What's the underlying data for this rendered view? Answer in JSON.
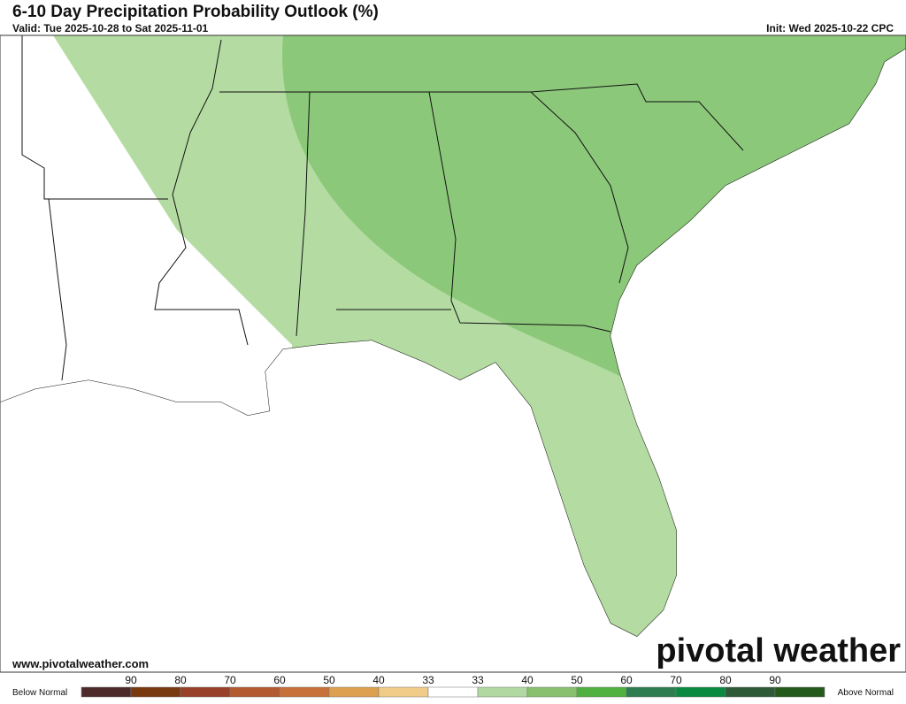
{
  "header": {
    "title": "6-10 Day Precipitation Probability Outlook (%)",
    "valid": "Valid: Tue 2025-10-28 to Sat 2025-11-01",
    "init": "Init: Wed 2025-10-22 CPC"
  },
  "footer": {
    "website": "www.pivotalweather.com",
    "logo": "pivotal weather"
  },
  "legend": {
    "below_label": "Below Normal",
    "above_label": "Above Normal",
    "ticks": [
      "90",
      "80",
      "70",
      "60",
      "50",
      "40",
      "33",
      "33",
      "40",
      "50",
      "60",
      "70",
      "80",
      "90"
    ],
    "colors": [
      "#4d2b2b",
      "#7a3a10",
      "#99402a",
      "#b45a30",
      "#c8703a",
      "#dda050",
      "#f0cc88",
      "#ffffff",
      "#b0d8a0",
      "#88c070",
      "#50b040",
      "#2e7d50",
      "#0a8a40",
      "#2f5a38",
      "#245a1c"
    ]
  }
}
